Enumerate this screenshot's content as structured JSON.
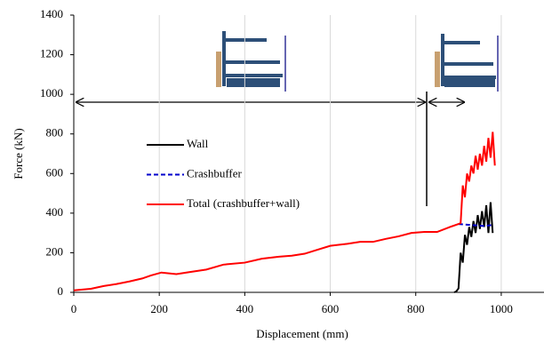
{
  "chart_data": {
    "type": "line",
    "x_label": "Displacement (mm)",
    "y_label": "Force (kN)",
    "xlim": [
      0,
      1100
    ],
    "xticks": [
      0,
      200,
      400,
      600,
      800,
      1000
    ],
    "ylim": [
      0,
      1400
    ],
    "yticks": [
      0,
      200,
      400,
      600,
      800,
      1000,
      1200,
      1400
    ],
    "grid": "x",
    "legend_position": "center left",
    "series": [
      {
        "name": "Wall",
        "color": "#000000",
        "dash": false,
        "x": [
          890,
          895,
          900,
          905,
          910,
          915,
          920,
          925,
          930,
          935,
          940,
          945,
          950,
          955,
          960,
          965,
          970,
          975,
          980
        ],
        "values": [
          0,
          5,
          20,
          200,
          150,
          290,
          240,
          330,
          280,
          360,
          300,
          390,
          320,
          410,
          330,
          440,
          300,
          455,
          300
        ]
      },
      {
        "name": "Crashbuffer",
        "color": "#0000cc",
        "dash": true,
        "x": [
          900,
          930,
          960,
          980
        ],
        "values": [
          345,
          340,
          335,
          340
        ]
      },
      {
        "name": "Total (crashbuffer+wall)",
        "color": "#ff0000",
        "dash": false,
        "x": [
          0,
          40,
          70,
          100,
          130,
          160,
          180,
          205,
          240,
          270,
          310,
          350,
          400,
          440,
          480,
          510,
          540,
          570,
          600,
          640,
          670,
          700,
          730,
          760,
          790,
          820,
          850,
          880,
          900,
          905,
          910,
          915,
          920,
          925,
          930,
          935,
          940,
          945,
          950,
          955,
          960,
          965,
          970,
          975,
          980,
          985
        ],
        "values": [
          10,
          18,
          32,
          42,
          55,
          70,
          85,
          100,
          92,
          102,
          115,
          140,
          150,
          170,
          180,
          185,
          195,
          215,
          235,
          245,
          255,
          255,
          270,
          283,
          300,
          305,
          305,
          330,
          345,
          350,
          540,
          480,
          600,
          560,
          640,
          600,
          690,
          620,
          700,
          640,
          740,
          660,
          780,
          680,
          810,
          640
        ]
      }
    ]
  }
}
